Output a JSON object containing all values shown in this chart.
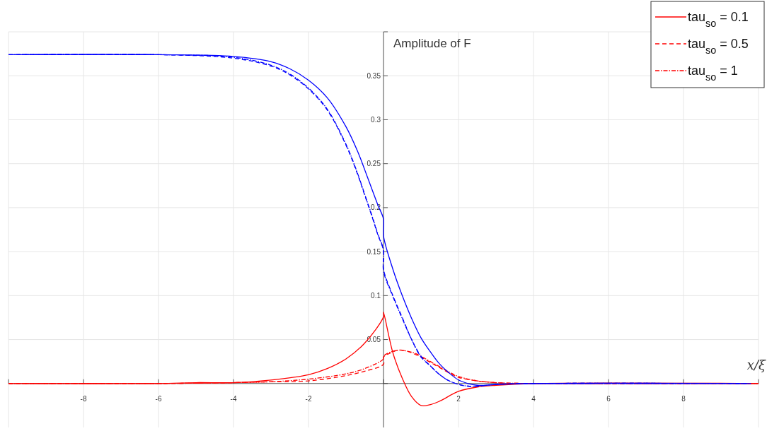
{
  "chart_data": {
    "type": "line",
    "ylabel": "Amplitude of F",
    "xlabel": "x/ξ",
    "xlim": [
      -10,
      10
    ],
    "ylim": [
      -0.05,
      0.4
    ],
    "xticks": [
      {
        "value": -10,
        "label": null
      },
      -8,
      -6,
      -4,
      -2,
      {
        "value": 0,
        "label": null
      },
      2,
      4,
      6,
      8,
      {
        "value": 10,
        "label": null
      }
    ],
    "yticks": [
      {
        "value": 0,
        "label": null
      },
      0.05,
      0.1,
      0.15,
      0.2,
      0.25,
      0.3,
      0.35,
      {
        "value": 0.4,
        "label": null
      }
    ],
    "grid": true,
    "legend": "top right",
    "marker": "none",
    "series": [
      {
        "name": "tau$_{so}$ = 0.1",
        "color": "#ff0000",
        "line_style": "solid",
        "x": [
          -10,
          -6,
          -5,
          -4,
          -3,
          -2,
          -1.5,
          -1,
          -0.5,
          0,
          0,
          0.25,
          0.5,
          0.75,
          1,
          1.25,
          1.5,
          2,
          2.5,
          3,
          4,
          10
        ],
        "values": [
          0,
          0,
          0.001,
          0.001,
          0.004,
          0.01,
          0.017,
          0.028,
          0.046,
          0.076,
          0.081,
          0.035,
          0.006,
          -0.015,
          -0.025,
          -0.024,
          -0.02,
          -0.009,
          -0.004,
          -0.002,
          0,
          0
        ]
      },
      {
        "name": "tau$_{so}$ = 0.5",
        "color": "#ff0000",
        "line_style": "dashed",
        "x": [
          -10,
          -6,
          -4,
          -3,
          -2,
          -1,
          -0.5,
          0,
          0,
          0.2,
          0.4,
          0.6,
          0.8,
          1,
          1.25,
          1.5,
          1.75,
          2,
          2.5,
          3,
          4,
          10
        ],
        "values": [
          0,
          0,
          0.001,
          0.002,
          0.003,
          0.009,
          0.014,
          0.022,
          0.03,
          0.035,
          0.038,
          0.037,
          0.034,
          0.03,
          0.024,
          0.018,
          0.012,
          0.007,
          0.003,
          0.001,
          0,
          0
        ]
      },
      {
        "name": "tau$_{so}$ = 1",
        "color": "#ff0000",
        "line_style": "dashdot",
        "x": [
          -10,
          -6,
          -4,
          -3,
          -2,
          -1,
          -0.5,
          0,
          0,
          0.2,
          0.4,
          0.6,
          0.8,
          1,
          1.25,
          1.5,
          1.75,
          2,
          2.5,
          3,
          4,
          10
        ],
        "values": [
          0,
          0,
          0.001,
          0.002,
          0.005,
          0.011,
          0.017,
          0.028,
          0.031,
          0.036,
          0.038,
          0.037,
          0.035,
          0.031,
          0.025,
          0.019,
          0.013,
          0.008,
          0.003,
          0.001,
          0,
          0
        ]
      },
      {
        "color": "#0000ff",
        "line_style": "solid",
        "x": [
          -10,
          -6,
          -4,
          -3,
          -2.5,
          -2,
          -1.5,
          -1,
          -0.7,
          -0.5,
          -0.3,
          -0.15,
          0,
          0,
          0.25,
          0.5,
          0.75,
          1,
          1.25,
          1.5,
          1.75,
          2,
          2.25,
          2.5,
          2.75,
          3,
          4,
          9.8
        ],
        "values": [
          0.374,
          0.374,
          0.372,
          0.366,
          0.358,
          0.345,
          0.325,
          0.292,
          0.265,
          0.243,
          0.22,
          0.203,
          0.187,
          0.168,
          0.13,
          0.1,
          0.074,
          0.052,
          0.036,
          0.022,
          0.012,
          0.004,
          0,
          -0.002,
          -0.002,
          -0.001,
          0,
          0
        ]
      },
      {
        "color": "#0000ff",
        "line_style": "dashed",
        "x": [
          -10,
          -6,
          -4,
          -3,
          -2.5,
          -2,
          -1.5,
          -1,
          -0.7,
          -0.5,
          -0.3,
          -0.15,
          0,
          0,
          0.25,
          0.5,
          0.75,
          1,
          1.25,
          1.5,
          1.75,
          2,
          2.25,
          2.5,
          3,
          4,
          9.7
        ],
        "values": [
          0.374,
          0.374,
          0.37,
          0.361,
          0.351,
          0.335,
          0.311,
          0.271,
          0.239,
          0.214,
          0.189,
          0.169,
          0.151,
          0.13,
          0.1,
          0.075,
          0.05,
          0.03,
          0.02,
          0.01,
          0.003,
          -0.001,
          -0.003,
          -0.003,
          -0.001,
          0,
          0
        ]
      },
      {
        "color": "#0000ff",
        "line_style": "dashdot",
        "x": [
          -10,
          -6,
          -4,
          -3,
          -2.5,
          -2,
          -1.5,
          -1,
          -0.7,
          -0.5,
          -0.3,
          -0.15,
          0,
          0,
          0.25,
          0.5,
          0.75,
          1,
          1.25,
          1.5,
          1.75,
          2,
          2.25,
          2.5,
          3,
          4,
          9.6
        ],
        "values": [
          0.374,
          0.374,
          0.371,
          0.362,
          0.352,
          0.336,
          0.312,
          0.272,
          0.24,
          0.215,
          0.19,
          0.17,
          0.152,
          0.128,
          0.099,
          0.074,
          0.05,
          0.031,
          0.02,
          0.01,
          0.003,
          -0.001,
          -0.003,
          -0.003,
          -0.001,
          0,
          0
        ]
      }
    ]
  }
}
